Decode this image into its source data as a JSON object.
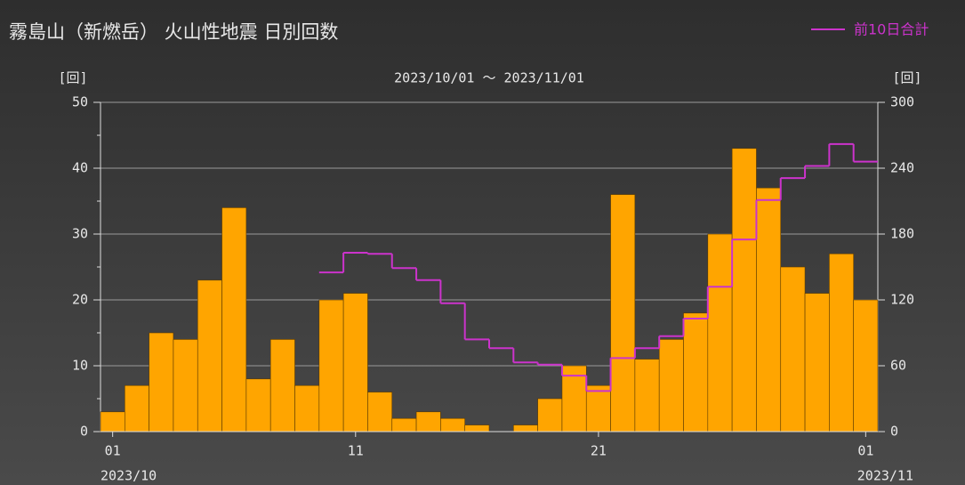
{
  "chart_data": {
    "type": "bar",
    "title": "霧島山（新燃岳） 火山性地震 日別回数",
    "subtitle": "2023/10/01 ～ 2023/11/01",
    "y_label": "[回]",
    "y2_label": "[回]",
    "categories": [
      "01",
      null,
      null,
      null,
      null,
      null,
      null,
      null,
      null,
      null,
      "11",
      null,
      null,
      null,
      null,
      null,
      null,
      null,
      null,
      null,
      "21",
      null,
      null,
      null,
      null,
      null,
      null,
      null,
      null,
      null,
      null,
      "01"
    ],
    "x_group_labels": [
      "2023/10",
      "2023/11"
    ],
    "series": [
      {
        "name": "日別回数",
        "color": "#ffa500",
        "values": [
          3,
          7,
          15,
          14,
          23,
          34,
          8,
          14,
          7,
          20,
          21,
          6,
          2,
          3,
          2,
          1,
          0,
          1,
          5,
          10,
          7,
          36,
          11,
          14,
          18,
          30,
          43,
          37,
          25,
          21,
          27,
          20
        ]
      },
      {
        "name": "前10日合計",
        "color": "#cc33cc",
        "axis": "y2",
        "values": [
          null,
          null,
          null,
          null,
          null,
          null,
          null,
          null,
          null,
          145,
          163,
          162,
          149,
          138,
          117,
          84,
          76,
          63,
          61,
          51,
          37,
          67,
          76,
          87,
          103,
          132,
          175,
          211,
          231,
          242,
          262,
          246
        ]
      }
    ],
    "ylim": [
      0,
      50
    ],
    "yticks": [
      0,
      10,
      20,
      30,
      40,
      50
    ],
    "y2lim": [
      0,
      300
    ],
    "y2ticks": [
      0,
      60,
      120,
      180,
      240,
      300
    ],
    "grid": true
  }
}
